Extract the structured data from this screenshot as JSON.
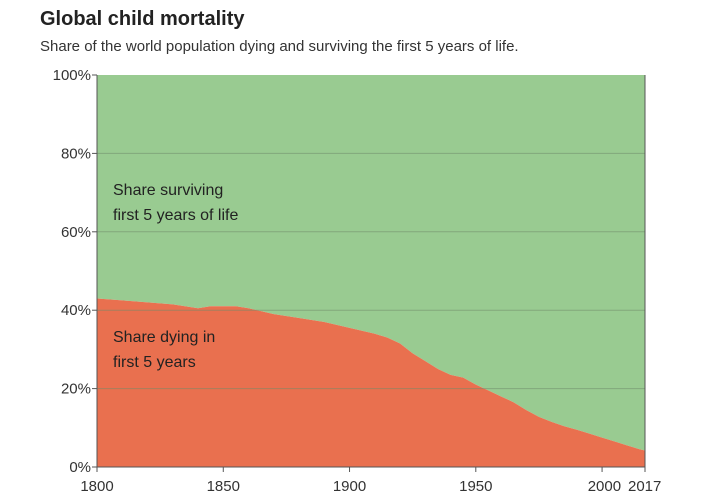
{
  "chart_data": {
    "type": "area",
    "stacked": true,
    "title": "Global child mortality",
    "subtitle": "Share of the world population dying and surviving the first 5 years of life.",
    "xlabel": "",
    "ylabel": "",
    "xlim": [
      1800,
      2017
    ],
    "ylim": [
      0,
      100
    ],
    "x_ticks": [
      1800,
      1850,
      1900,
      1950,
      2000,
      2017
    ],
    "y_ticks": [
      "0%",
      "20%",
      "40%",
      "60%",
      "80%",
      "100%"
    ],
    "grid": true,
    "x": [
      1800,
      1810,
      1820,
      1830,
      1840,
      1845,
      1850,
      1855,
      1860,
      1870,
      1880,
      1890,
      1900,
      1910,
      1915,
      1920,
      1925,
      1930,
      1935,
      1940,
      1945,
      1950,
      1955,
      1960,
      1965,
      1970,
      1975,
      1980,
      1985,
      1990,
      1995,
      2000,
      2005,
      2010,
      2015,
      2017
    ],
    "series": [
      {
        "name": "Share dying in first 5 years",
        "color": "#e9704f",
        "values": [
          43.0,
          42.5,
          42.0,
          41.5,
          40.5,
          41.0,
          41.0,
          41.0,
          40.5,
          39.0,
          38.0,
          37.0,
          35.5,
          34.0,
          33.0,
          31.5,
          29.0,
          27.0,
          25.0,
          23.5,
          22.8,
          21.0,
          19.5,
          18.0,
          16.5,
          14.5,
          12.8,
          11.5,
          10.4,
          9.5,
          8.5,
          7.5,
          6.5,
          5.5,
          4.5,
          4.2
        ]
      },
      {
        "name": "Share surviving first 5 years of life",
        "color": "#99cb91",
        "values": [
          57.0,
          57.5,
          58.0,
          58.5,
          59.5,
          59.0,
          59.0,
          59.0,
          59.5,
          61.0,
          62.0,
          63.0,
          64.5,
          66.0,
          67.0,
          68.5,
          71.0,
          73.0,
          75.0,
          76.5,
          77.2,
          79.0,
          80.5,
          82.0,
          83.5,
          85.5,
          87.2,
          88.5,
          89.6,
          90.5,
          91.5,
          92.5,
          93.5,
          94.5,
          95.5,
          95.8
        ]
      }
    ],
    "annotations": [
      {
        "series": 1,
        "lines": [
          "Share surviving",
          "first 5 years of life"
        ]
      },
      {
        "series": 0,
        "lines": [
          "Share dying in",
          "first 5 years"
        ]
      }
    ]
  }
}
